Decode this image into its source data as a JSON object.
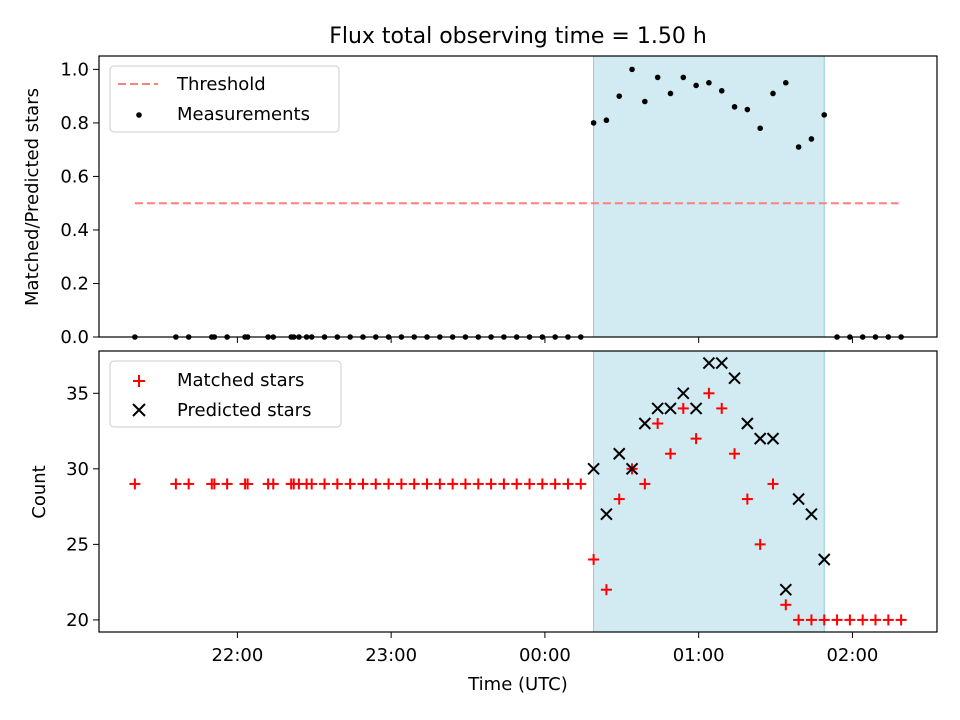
{
  "figure": {
    "title": "Flux total observing time = 1.50 h"
  },
  "chart_data": [
    {
      "type": "scatter",
      "ylabel": "Matched/Predicted stars",
      "xlabel": "",
      "ylim": [
        0,
        1.05
      ],
      "yticks": [
        0.0,
        0.2,
        0.4,
        0.6,
        0.8,
        1.0
      ],
      "ytick_labels": [
        "0.0",
        "0.2",
        "0.4",
        "0.6",
        "0.8",
        "1.0"
      ],
      "xlim": [
        "21:06",
        "02:33"
      ],
      "xticks": [
        "22:00",
        "23:00",
        "00:00",
        "01:00",
        "02:00"
      ],
      "shaded_region": {
        "from": "00:19",
        "to": "01:49",
        "color": "#add8e6"
      },
      "legend": {
        "position": "top-left",
        "entries": [
          "Threshold",
          "Measurements"
        ]
      },
      "series": [
        {
          "name": "Threshold",
          "style": "dashed-line",
          "color": "#ff7f7f",
          "x": [
            "21:20",
            "02:18"
          ],
          "y": [
            0.5,
            0.5
          ]
        },
        {
          "name": "Measurements",
          "style": "dot",
          "color": "#000000",
          "x": [
            "21:20",
            "21:36",
            "21:41",
            "21:50",
            "21:51",
            "21:56",
            "22:03",
            "22:04",
            "22:12",
            "22:14",
            "22:21",
            "22:22",
            "22:24",
            "22:27",
            "22:29",
            "22:34",
            "22:39",
            "22:44",
            "22:49",
            "22:54",
            "22:59",
            "23:04",
            "23:09",
            "23:14",
            "23:19",
            "23:24",
            "23:29",
            "23:34",
            "23:39",
            "23:44",
            "23:49",
            "23:54",
            "23:59",
            "00:04",
            "00:09",
            "00:14",
            "00:19",
            "00:24",
            "00:29",
            "00:34",
            "00:39",
            "00:44",
            "00:49",
            "00:54",
            "00:59",
            "01:04",
            "01:09",
            "01:14",
            "01:19",
            "01:24",
            "01:29",
            "01:34",
            "01:39",
            "01:44",
            "01:49",
            "01:54",
            "01:59",
            "02:04",
            "02:09",
            "02:14",
            "02:19"
          ],
          "y": [
            0,
            0,
            0,
            0,
            0,
            0,
            0,
            0,
            0,
            0,
            0,
            0,
            0,
            0,
            0,
            0,
            0,
            0,
            0,
            0,
            0,
            0,
            0,
            0,
            0,
            0,
            0,
            0,
            0,
            0,
            0,
            0,
            0,
            0,
            0,
            0,
            0.8,
            0.81,
            0.9,
            1.0,
            0.88,
            0.97,
            0.91,
            0.97,
            0.94,
            0.95,
            0.92,
            0.86,
            0.85,
            0.78,
            0.91,
            0.95,
            0.71,
            0.74,
            0.83,
            0,
            0,
            0,
            0,
            0,
            0
          ]
        }
      ]
    },
    {
      "type": "scatter",
      "ylabel": "Count",
      "xlabel": "Time (UTC)",
      "ylim": [
        19.2,
        37.8
      ],
      "yticks": [
        20,
        25,
        30,
        35
      ],
      "ytick_labels": [
        "20",
        "25",
        "30",
        "35"
      ],
      "xlim": [
        "21:06",
        "02:33"
      ],
      "xticks": [
        "22:00",
        "23:00",
        "00:00",
        "01:00",
        "02:00"
      ],
      "xtick_labels": [
        "22:00",
        "23:00",
        "00:00",
        "01:00",
        "02:00"
      ],
      "shaded_region": {
        "from": "00:19",
        "to": "01:49",
        "color": "#add8e6"
      },
      "legend": {
        "position": "top-left",
        "entries": [
          "Matched stars",
          "Predicted stars"
        ]
      },
      "series": [
        {
          "name": "Matched stars",
          "marker": "plus",
          "color": "#ff0000",
          "x": [
            "21:20",
            "21:36",
            "21:41",
            "21:50",
            "21:51",
            "21:56",
            "22:03",
            "22:04",
            "22:12",
            "22:14",
            "22:21",
            "22:22",
            "22:24",
            "22:27",
            "22:29",
            "22:34",
            "22:39",
            "22:44",
            "22:49",
            "22:54",
            "22:59",
            "23:04",
            "23:09",
            "23:14",
            "23:19",
            "23:24",
            "23:29",
            "23:34",
            "23:39",
            "23:44",
            "23:49",
            "23:54",
            "23:59",
            "00:04",
            "00:09",
            "00:14",
            "00:19",
            "00:24",
            "00:29",
            "00:34",
            "00:39",
            "00:44",
            "00:49",
            "00:54",
            "00:59",
            "01:04",
            "01:09",
            "01:14",
            "01:19",
            "01:24",
            "01:29",
            "01:34",
            "01:39",
            "01:44",
            "01:49",
            "01:54",
            "01:59",
            "02:04",
            "02:09",
            "02:14",
            "02:19"
          ],
          "y": [
            29,
            29,
            29,
            29,
            29,
            29,
            29,
            29,
            29,
            29,
            29,
            29,
            29,
            29,
            29,
            29,
            29,
            29,
            29,
            29,
            29,
            29,
            29,
            29,
            29,
            29,
            29,
            29,
            29,
            29,
            29,
            29,
            29,
            29,
            29,
            29,
            24,
            22,
            28,
            30,
            29,
            33,
            31,
            34,
            32,
            35,
            34,
            31,
            28,
            25,
            29,
            21,
            20,
            20,
            20,
            20,
            20,
            20,
            20,
            20,
            20
          ]
        },
        {
          "name": "Predicted stars",
          "marker": "x",
          "color": "#000000",
          "x": [
            "00:19",
            "00:24",
            "00:29",
            "00:34",
            "00:39",
            "00:44",
            "00:49",
            "00:54",
            "00:59",
            "01:04",
            "01:09",
            "01:14",
            "01:19",
            "01:24",
            "01:29",
            "01:34",
            "01:39",
            "01:44",
            "01:49"
          ],
          "y": [
            30,
            27,
            31,
            30,
            33,
            34,
            34,
            35,
            34,
            37,
            37,
            36,
            33,
            32,
            32,
            22,
            28,
            27,
            24
          ]
        }
      ]
    }
  ]
}
